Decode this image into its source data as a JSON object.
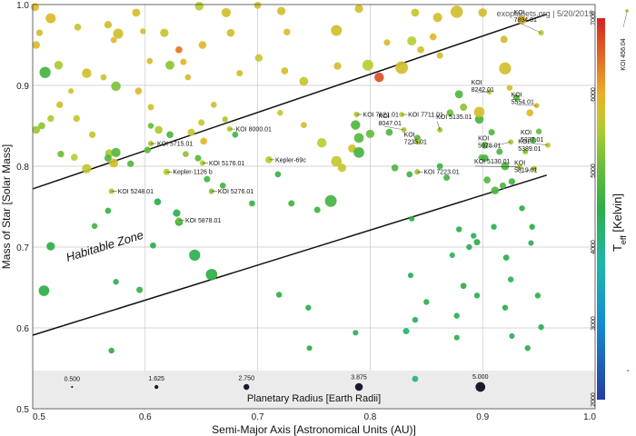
{
  "chart_data": {
    "type": "scatter",
    "credit": "exoplanets.org | 5/20/2019",
    "xlabel": "Semi-Major Axis [Astronomical Units (AU)]",
    "ylabel": "Mass of Star [Solar Mass]",
    "xlim": [
      0.5,
      1.0
    ],
    "ylim": [
      0.5,
      1.0
    ],
    "xticks": [
      "0.5",
      "0.6",
      "0.7",
      "0.8",
      "0.9",
      "1.0"
    ],
    "yticks": [
      "0.5",
      "0.6",
      "0.7",
      "0.8",
      "0.9",
      "1.0"
    ],
    "grid": true,
    "habitable_zone": {
      "label": "Habitable Zone",
      "upper_line": [
        [
          0.5,
          0.772
        ],
        [
          0.957,
          0.988
        ]
      ],
      "lower_line": [
        [
          0.5,
          0.591
        ],
        [
          0.957,
          0.789
        ]
      ]
    },
    "colorbar": {
      "title": "T_eff [Kelvin]",
      "title_main": "T",
      "title_sub": "eff",
      "title_rest": " [Kelvin]",
      "range": [
        2000,
        7000
      ],
      "ticks": [
        "2000",
        "3000",
        "4000",
        "5000",
        "6000",
        "7000"
      ],
      "extra_label": "KOI 456.04",
      "extra_label_x": 0.987,
      "extra_label_y": 1.0
    },
    "size_legend": {
      "title": "Planetary Radius [Earth Radii]",
      "values": [
        0.5,
        1.625,
        2.75,
        3.875,
        5.0
      ],
      "labels": [
        "0.500",
        "1.625",
        "2.750",
        "3.875",
        "5.000"
      ]
    },
    "labeled_points": [
      {
        "name": "KOI 7894.01",
        "x": 0.952,
        "y": 0.965,
        "r": 1.2,
        "t": 5600
      },
      {
        "name": "KOI 8242.01",
        "x": 0.906,
        "y": 0.892,
        "r": 1.1,
        "t": 5700
      },
      {
        "name": "KOI 5554.01",
        "x": 0.948,
        "y": 0.875,
        "r": 1.1,
        "t": 5800
      },
      {
        "name": "KOI 8000.01",
        "x": 0.675,
        "y": 0.846,
        "r": 1.2,
        "t": 5600
      },
      {
        "name": "KOI 7621.01",
        "x": 0.788,
        "y": 0.864,
        "r": 1.2,
        "t": 5500
      },
      {
        "name": "KOI 7711.01",
        "x": 0.828,
        "y": 0.864,
        "r": 1.1,
        "t": 5600
      },
      {
        "name": "KOI 8047.01",
        "x": 0.83,
        "y": 0.845,
        "r": 1.1,
        "t": 5500
      },
      {
        "name": "KOI 5135.01",
        "x": 0.862,
        "y": 0.845,
        "r": 1.1,
        "t": 5400
      },
      {
        "name": "KOI 7235.01",
        "x": 0.843,
        "y": 0.83,
        "r": 1.1,
        "t": 5500
      },
      {
        "name": "KOI 5237.01",
        "x": 0.958,
        "y": 0.826,
        "r": 1.1,
        "t": 5700
      },
      {
        "name": "KOI 5978.01",
        "x": 0.925,
        "y": 0.83,
        "r": 1.1,
        "t": 5500
      },
      {
        "name": "KOI 5389.01",
        "x": 0.938,
        "y": 0.818,
        "r": 1.2,
        "t": 5400
      },
      {
        "name": "KOI 5715.01",
        "x": 0.605,
        "y": 0.828,
        "r": 1.2,
        "t": 5500
      },
      {
        "name": "KOI 5176.01",
        "x": 0.651,
        "y": 0.804,
        "r": 1.2,
        "t": 5600
      },
      {
        "name": "Kepler-69c",
        "x": 0.71,
        "y": 0.808,
        "r": 1.7,
        "t": 5600
      },
      {
        "name": "KOI 5130.01",
        "x": 0.933,
        "y": 0.799,
        "r": 1.2,
        "t": 5500
      },
      {
        "name": "KOI 5819.01",
        "x": 0.946,
        "y": 0.797,
        "r": 1.1,
        "t": 5400
      },
      {
        "name": "KOI 7223.01",
        "x": 0.842,
        "y": 0.793,
        "r": 1.2,
        "t": 5400
      },
      {
        "name": "Kepler-1126 b",
        "x": 0.619,
        "y": 0.793,
        "r": 1.5,
        "t": 5600
      },
      {
        "name": "KOI 5248.01",
        "x": 0.57,
        "y": 0.769,
        "r": 1.2,
        "t": 5500
      },
      {
        "name": "KOI 5276.01",
        "x": 0.659,
        "y": 0.769,
        "r": 1.2,
        "t": 5300
      },
      {
        "name": "KOI 5878.01",
        "x": 0.63,
        "y": 0.733,
        "r": 1.3,
        "t": 5100
      }
    ],
    "points": [
      {
        "x": 0.502,
        "y": 0.997,
        "r": 2.1,
        "t": 5900
      },
      {
        "x": 0.506,
        "y": 0.965,
        "r": 1.6,
        "t": 5800
      },
      {
        "x": 0.503,
        "y": 0.95,
        "r": 2.0,
        "t": 5900
      },
      {
        "x": 0.511,
        "y": 0.916,
        "r": 3.2,
        "t": 4700
      },
      {
        "x": 0.523,
        "y": 0.925,
        "r": 2.3,
        "t": 5500
      },
      {
        "x": 0.516,
        "y": 0.983,
        "r": 2.8,
        "t": 5900
      },
      {
        "x": 0.54,
        "y": 0.972,
        "r": 1.7,
        "t": 5700
      },
      {
        "x": 0.548,
        "y": 0.915,
        "r": 2.6,
        "t": 5800
      },
      {
        "x": 0.567,
        "y": 0.975,
        "r": 1.9,
        "t": 5800
      },
      {
        "x": 0.572,
        "y": 0.956,
        "r": 1.4,
        "t": 5900
      },
      {
        "x": 0.576,
        "y": 0.964,
        "r": 2.8,
        "t": 5800
      },
      {
        "x": 0.574,
        "y": 0.899,
        "r": 2.6,
        "t": 5200
      },
      {
        "x": 0.563,
        "y": 0.91,
        "r": 1.4,
        "t": 5700
      },
      {
        "x": 0.534,
        "y": 0.893,
        "r": 1.2,
        "t": 5800
      },
      {
        "x": 0.592,
        "y": 0.99,
        "r": 2.1,
        "t": 5800
      },
      {
        "x": 0.598,
        "y": 0.967,
        "r": 1.3,
        "t": 5800
      },
      {
        "x": 0.617,
        "y": 0.965,
        "r": 2.2,
        "t": 5700
      },
      {
        "x": 0.63,
        "y": 0.944,
        "r": 1.7,
        "t": 6400
      },
      {
        "x": 0.634,
        "y": 0.929,
        "r": 1.5,
        "t": 5900
      },
      {
        "x": 0.622,
        "y": 0.925,
        "r": 2.4,
        "t": 5300
      },
      {
        "x": 0.604,
        "y": 0.93,
        "r": 1.4,
        "t": 5800
      },
      {
        "x": 0.648,
        "y": 0.998,
        "r": 2.3,
        "t": 5600
      },
      {
        "x": 0.651,
        "y": 0.95,
        "r": 2.0,
        "t": 5900
      },
      {
        "x": 0.672,
        "y": 0.99,
        "r": 2.5,
        "t": 5800
      },
      {
        "x": 0.676,
        "y": 0.965,
        "r": 2.0,
        "t": 5800
      },
      {
        "x": 0.7,
        "y": 0.999,
        "r": 1.7,
        "t": 5800
      },
      {
        "x": 0.721,
        "y": 0.992,
        "r": 2.2,
        "t": 5800
      },
      {
        "x": 0.726,
        "y": 0.966,
        "r": 1.6,
        "t": 5900
      },
      {
        "x": 0.77,
        "y": 0.968,
        "r": 3.1,
        "t": 5800
      },
      {
        "x": 0.79,
        "y": 0.995,
        "r": 2.2,
        "t": 5800
      },
      {
        "x": 0.84,
        "y": 0.99,
        "r": 2.1,
        "t": 5700
      },
      {
        "x": 0.856,
        "y": 0.96,
        "r": 1.7,
        "t": 5900
      },
      {
        "x": 0.86,
        "y": 0.984,
        "r": 2.5,
        "t": 5800
      },
      {
        "x": 0.877,
        "y": 0.991,
        "r": 3.6,
        "t": 5800
      },
      {
        "x": 0.9,
        "y": 0.99,
        "r": 2.3,
        "t": 5800
      },
      {
        "x": 0.919,
        "y": 0.957,
        "r": 1.8,
        "t": 5800
      },
      {
        "x": 0.935,
        "y": 0.981,
        "r": 2.4,
        "t": 5900
      },
      {
        "x": 0.837,
        "y": 0.955,
        "r": 2.5,
        "t": 5600
      },
      {
        "x": 0.815,
        "y": 0.953,
        "r": 1.5,
        "t": 5900
      },
      {
        "x": 0.798,
        "y": 0.925,
        "r": 3.1,
        "t": 5600
      },
      {
        "x": 0.808,
        "y": 0.91,
        "r": 2.6,
        "t": 6700
      },
      {
        "x": 0.828,
        "y": 0.922,
        "r": 3.7,
        "t": 5800
      },
      {
        "x": 0.845,
        "y": 0.944,
        "r": 1.7,
        "t": 5800
      },
      {
        "x": 0.862,
        "y": 0.937,
        "r": 1.5,
        "t": 5800
      },
      {
        "x": 0.771,
        "y": 0.924,
        "r": 1.9,
        "t": 5800
      },
      {
        "x": 0.741,
        "y": 0.905,
        "r": 2.4,
        "t": 5700
      },
      {
        "x": 0.724,
        "y": 0.918,
        "r": 1.7,
        "t": 5800
      },
      {
        "x": 0.701,
        "y": 0.934,
        "r": 1.9,
        "t": 5700
      },
      {
        "x": 0.684,
        "y": 0.915,
        "r": 1.5,
        "t": 5800
      },
      {
        "x": 0.638,
        "y": 0.91,
        "r": 1.4,
        "t": 5800
      },
      {
        "x": 0.661,
        "y": 0.876,
        "r": 1.4,
        "t": 5800
      },
      {
        "x": 0.671,
        "y": 0.858,
        "r": 1.3,
        "t": 5500
      },
      {
        "x": 0.605,
        "y": 0.873,
        "r": 1.5,
        "t": 5800
      },
      {
        "x": 0.594,
        "y": 0.893,
        "r": 1.7,
        "t": 5900
      },
      {
        "x": 0.524,
        "y": 0.876,
        "r": 1.6,
        "t": 5800
      },
      {
        "x": 0.516,
        "y": 0.859,
        "r": 1.6,
        "t": 5500
      },
      {
        "x": 0.503,
        "y": 0.845,
        "r": 2.0,
        "t": 5400
      },
      {
        "x": 0.508,
        "y": 0.85,
        "r": 1.7,
        "t": 5300
      },
      {
        "x": 0.539,
        "y": 0.859,
        "r": 1.6,
        "t": 5700
      },
      {
        "x": 0.553,
        "y": 0.839,
        "r": 1.6,
        "t": 5700
      },
      {
        "x": 0.568,
        "y": 0.816,
        "r": 2.1,
        "t": 5500
      },
      {
        "x": 0.574,
        "y": 0.817,
        "r": 2.5,
        "t": 4900
      },
      {
        "x": 0.567,
        "y": 0.81,
        "r": 1.8,
        "t": 4800
      },
      {
        "x": 0.572,
        "y": 0.804,
        "r": 2.4,
        "t": 5800
      },
      {
        "x": 0.548,
        "y": 0.797,
        "r": 2.5,
        "t": 5700
      },
      {
        "x": 0.537,
        "y": 0.811,
        "r": 1.7,
        "t": 5600
      },
      {
        "x": 0.525,
        "y": 0.815,
        "r": 1.6,
        "t": 5100
      },
      {
        "x": 0.587,
        "y": 0.803,
        "r": 1.6,
        "t": 4800
      },
      {
        "x": 0.602,
        "y": 0.82,
        "r": 1.6,
        "t": 5000
      },
      {
        "x": 0.612,
        "y": 0.845,
        "r": 2.0,
        "t": 5500
      },
      {
        "x": 0.622,
        "y": 0.839,
        "r": 1.7,
        "t": 4800
      },
      {
        "x": 0.605,
        "y": 0.85,
        "r": 1.3,
        "t": 5000
      },
      {
        "x": 0.641,
        "y": 0.842,
        "r": 1.8,
        "t": 5700
      },
      {
        "x": 0.65,
        "y": 0.854,
        "r": 1.5,
        "t": 5700
      },
      {
        "x": 0.72,
        "y": 0.866,
        "r": 1.3,
        "t": 5700
      },
      {
        "x": 0.741,
        "y": 0.851,
        "r": 1.4,
        "t": 5800
      },
      {
        "x": 0.68,
        "y": 0.839,
        "r": 1.4,
        "t": 4700
      },
      {
        "x": 0.652,
        "y": 0.831,
        "r": 1.7,
        "t": 5900
      },
      {
        "x": 0.647,
        "y": 0.81,
        "r": 1.5,
        "t": 4900
      },
      {
        "x": 0.636,
        "y": 0.815,
        "r": 1.4,
        "t": 5300
      },
      {
        "x": 0.757,
        "y": 0.829,
        "r": 2.6,
        "t": 5600
      },
      {
        "x": 0.77,
        "y": 0.806,
        "r": 3.0,
        "t": 5700
      },
      {
        "x": 0.775,
        "y": 0.798,
        "r": 2.2,
        "t": 5700
      },
      {
        "x": 0.784,
        "y": 0.822,
        "r": 2.1,
        "t": 5800
      },
      {
        "x": 0.79,
        "y": 0.817,
        "r": 3.0,
        "t": 4700
      },
      {
        "x": 0.79,
        "y": 0.835,
        "r": 2.7,
        "t": 4900
      },
      {
        "x": 0.787,
        "y": 0.851,
        "r": 2.6,
        "t": 4800
      },
      {
        "x": 0.8,
        "y": 0.84,
        "r": 2.2,
        "t": 5000
      },
      {
        "x": 0.817,
        "y": 0.842,
        "r": 1.7,
        "t": 4800
      },
      {
        "x": 0.842,
        "y": 0.835,
        "r": 1.5,
        "t": 4900
      },
      {
        "x": 0.871,
        "y": 0.866,
        "r": 1.7,
        "t": 5100
      },
      {
        "x": 0.883,
        "y": 0.873,
        "r": 1.8,
        "t": 5300
      },
      {
        "x": 0.879,
        "y": 0.889,
        "r": 2.1,
        "t": 4800
      },
      {
        "x": 0.897,
        "y": 0.858,
        "r": 2.3,
        "t": 4700
      },
      {
        "x": 0.897,
        "y": 0.867,
        "r": 3.0,
        "t": 5800
      },
      {
        "x": 0.92,
        "y": 0.921,
        "r": 3.5,
        "t": 5800
      },
      {
        "x": 0.924,
        "y": 0.897,
        "r": 1.3,
        "t": 5800
      },
      {
        "x": 0.93,
        "y": 0.885,
        "r": 1.6,
        "t": 4900
      },
      {
        "x": 0.942,
        "y": 0.866,
        "r": 1.7,
        "t": 5900
      },
      {
        "x": 0.945,
        "y": 0.832,
        "r": 1.5,
        "t": 4800
      },
      {
        "x": 0.95,
        "y": 0.843,
        "r": 1.3,
        "t": 5000
      },
      {
        "x": 0.908,
        "y": 0.842,
        "r": 1.5,
        "t": 4800
      },
      {
        "x": 0.902,
        "y": 0.826,
        "r": 1.6,
        "t": 4900
      },
      {
        "x": 0.915,
        "y": 0.818,
        "r": 1.5,
        "t": 4800
      },
      {
        "x": 0.899,
        "y": 0.811,
        "r": 1.4,
        "t": 4900
      },
      {
        "x": 0.902,
        "y": 0.81,
        "r": 1.8,
        "t": 4700
      },
      {
        "x": 0.92,
        "y": 0.8,
        "r": 2.1,
        "t": 4800
      },
      {
        "x": 0.926,
        "y": 0.781,
        "r": 1.6,
        "t": 4700
      },
      {
        "x": 0.918,
        "y": 0.776,
        "r": 1.5,
        "t": 4800
      },
      {
        "x": 0.904,
        "y": 0.783,
        "r": 1.7,
        "t": 4900
      },
      {
        "x": 0.911,
        "y": 0.77,
        "r": 2.0,
        "t": 4800
      },
      {
        "x": 0.868,
        "y": 0.786,
        "r": 1.5,
        "t": 4700
      },
      {
        "x": 0.862,
        "y": 0.8,
        "r": 1.4,
        "t": 4600
      },
      {
        "x": 0.835,
        "y": 0.79,
        "r": 1.4,
        "t": 4700
      },
      {
        "x": 0.822,
        "y": 0.798,
        "r": 1.7,
        "t": 4800
      },
      {
        "x": 0.765,
        "y": 0.757,
        "r": 3.4,
        "t": 4700
      },
      {
        "x": 0.753,
        "y": 0.746,
        "r": 1.5,
        "t": 4700
      },
      {
        "x": 0.73,
        "y": 0.754,
        "r": 1.5,
        "t": 4700
      },
      {
        "x": 0.718,
        "y": 0.79,
        "r": 1.4,
        "t": 4600
      },
      {
        "x": 0.695,
        "y": 0.754,
        "r": 1.4,
        "t": 4600
      },
      {
        "x": 0.669,
        "y": 0.776,
        "r": 1.4,
        "t": 4700
      },
      {
        "x": 0.655,
        "y": 0.784,
        "r": 1.5,
        "t": 4700
      },
      {
        "x": 0.611,
        "y": 0.756,
        "r": 1.7,
        "t": 4500
      },
      {
        "x": 0.628,
        "y": 0.742,
        "r": 1.9,
        "t": 4400
      },
      {
        "x": 0.63,
        "y": 0.731,
        "r": 2.0,
        "t": 4500
      },
      {
        "x": 0.567,
        "y": 0.745,
        "r": 1.4,
        "t": 4600
      },
      {
        "x": 0.555,
        "y": 0.726,
        "r": 1.3,
        "t": 4700
      },
      {
        "x": 0.516,
        "y": 0.701,
        "r": 2.2,
        "t": 4500
      },
      {
        "x": 0.51,
        "y": 0.646,
        "r": 3.0,
        "t": 4500
      },
      {
        "x": 0.644,
        "y": 0.69,
        "r": 3.2,
        "t": 4400
      },
      {
        "x": 0.659,
        "y": 0.666,
        "r": 3.3,
        "t": 4500
      },
      {
        "x": 0.595,
        "y": 0.647,
        "r": 1.5,
        "t": 4600
      },
      {
        "x": 0.607,
        "y": 0.702,
        "r": 1.4,
        "t": 4500
      },
      {
        "x": 0.574,
        "y": 0.657,
        "r": 1.3,
        "t": 4400
      },
      {
        "x": 0.57,
        "y": 0.572,
        "r": 1.3,
        "t": 4500
      },
      {
        "x": 0.719,
        "y": 0.641,
        "r": 1.3,
        "t": 4500
      },
      {
        "x": 0.745,
        "y": 0.625,
        "r": 1.3,
        "t": 4400
      },
      {
        "x": 0.746,
        "y": 0.575,
        "r": 1.2,
        "t": 4500
      },
      {
        "x": 0.787,
        "y": 0.594,
        "r": 1.2,
        "t": 4400
      },
      {
        "x": 0.832,
        "y": 0.596,
        "r": 1.5,
        "t": 4200
      },
      {
        "x": 0.84,
        "y": 0.61,
        "r": 1.3,
        "t": 4400
      },
      {
        "x": 0.85,
        "y": 0.632,
        "r": 1.3,
        "t": 4500
      },
      {
        "x": 0.877,
        "y": 0.615,
        "r": 1.3,
        "t": 4400
      },
      {
        "x": 0.883,
        "y": 0.652,
        "r": 1.4,
        "t": 4500
      },
      {
        "x": 0.895,
        "y": 0.64,
        "r": 1.3,
        "t": 4400
      },
      {
        "x": 0.92,
        "y": 0.625,
        "r": 1.3,
        "t": 4500
      },
      {
        "x": 0.921,
        "y": 0.687,
        "r": 1.4,
        "t": 4500
      },
      {
        "x": 0.925,
        "y": 0.66,
        "r": 1.3,
        "t": 4400
      },
      {
        "x": 0.895,
        "y": 0.706,
        "r": 1.5,
        "t": 4500
      },
      {
        "x": 0.91,
        "y": 0.725,
        "r": 1.3,
        "t": 4400
      },
      {
        "x": 0.892,
        "y": 0.714,
        "r": 1.3,
        "t": 4300
      },
      {
        "x": 0.888,
        "y": 0.7,
        "r": 1.3,
        "t": 4400
      },
      {
        "x": 0.879,
        "y": 0.722,
        "r": 1.3,
        "t": 4500
      },
      {
        "x": 0.873,
        "y": 0.69,
        "r": 1.2,
        "t": 4400
      },
      {
        "x": 0.837,
        "y": 0.735,
        "r": 1.2,
        "t": 4500
      },
      {
        "x": 0.836,
        "y": 0.665,
        "r": 1.2,
        "t": 4400
      },
      {
        "x": 0.935,
        "y": 0.748,
        "r": 1.3,
        "t": 4500
      },
      {
        "x": 0.944,
        "y": 0.725,
        "r": 1.3,
        "t": 4500
      },
      {
        "x": 0.943,
        "y": 0.705,
        "r": 1.2,
        "t": 4400
      },
      {
        "x": 0.949,
        "y": 0.64,
        "r": 1.3,
        "t": 4500
      },
      {
        "x": 0.952,
        "y": 0.601,
        "r": 1.3,
        "t": 4400
      },
      {
        "x": 0.94,
        "y": 0.575,
        "r": 1.3,
        "t": 4500
      },
      {
        "x": 0.926,
        "y": 0.59,
        "r": 1.2,
        "t": 4400
      },
      {
        "x": 0.877,
        "y": 0.588,
        "r": 1.2,
        "t": 4500
      },
      {
        "x": 0.84,
        "y": 0.537,
        "r": 1.4,
        "t": 4200
      }
    ]
  }
}
